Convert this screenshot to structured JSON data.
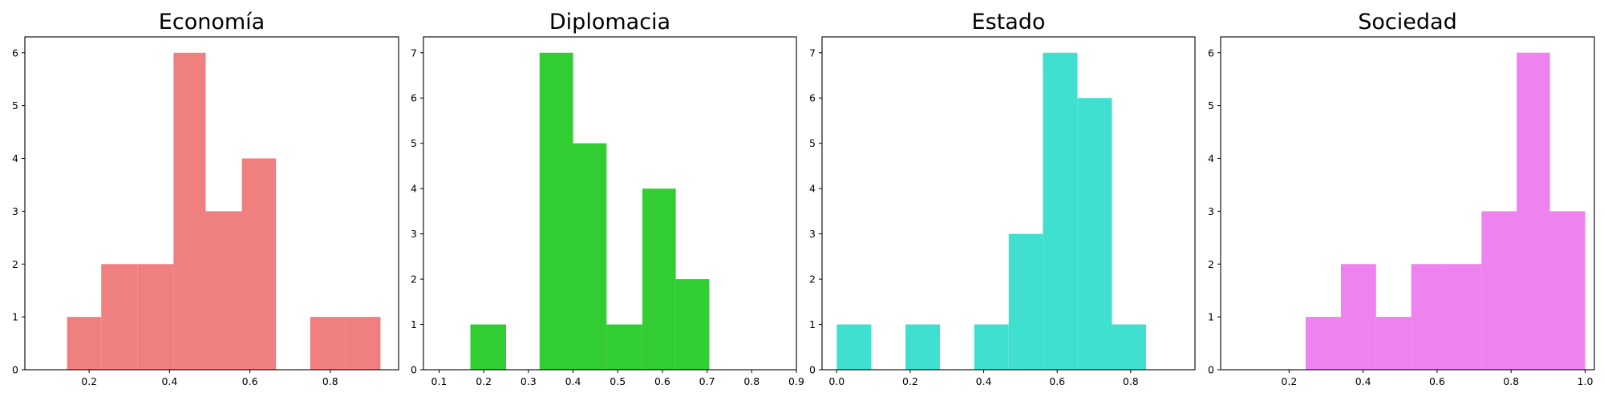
{
  "chart_data": [
    {
      "type": "bar",
      "title": "Economía",
      "color": "#F08080",
      "xlabel": "",
      "ylabel": "",
      "xlim": [
        0.04,
        0.97
      ],
      "ylim": [
        0,
        6.3
      ],
      "xticks": [
        0.2,
        0.4,
        0.6,
        0.8
      ],
      "xtick_labels": [
        "0.2",
        "0.4",
        "0.6",
        "0.8"
      ],
      "yticks": [
        0,
        1,
        2,
        3,
        4,
        5,
        6
      ],
      "ytick_labels": [
        "0",
        "1",
        "2",
        "3",
        "4",
        "5",
        "6"
      ],
      "bins": [
        {
          "x0": 0.145,
          "x1": 0.23,
          "count": 1
        },
        {
          "x0": 0.23,
          "x1": 0.32,
          "count": 2
        },
        {
          "x0": 0.32,
          "x1": 0.41,
          "count": 2
        },
        {
          "x0": 0.41,
          "x1": 0.49,
          "count": 6
        },
        {
          "x0": 0.49,
          "x1": 0.58,
          "count": 3
        },
        {
          "x0": 0.58,
          "x1": 0.665,
          "count": 4
        },
        {
          "x0": 0.665,
          "x1": 0.75,
          "count": 0
        },
        {
          "x0": 0.75,
          "x1": 0.84,
          "count": 1
        },
        {
          "x0": 0.84,
          "x1": 0.925,
          "count": 1
        }
      ]
    },
    {
      "type": "bar",
      "title": "Diplomacia",
      "color": "#32CD32",
      "xlabel": "",
      "ylabel": "",
      "xlim": [
        0.065,
        0.9
      ],
      "ylim": [
        0,
        7.35
      ],
      "xticks": [
        0.1,
        0.2,
        0.3,
        0.4,
        0.5,
        0.6,
        0.7,
        0.8,
        0.9
      ],
      "xtick_labels": [
        "0.1",
        "0.2",
        "0.3",
        "0.4",
        "0.5",
        "0.6",
        "0.7",
        "0.8",
        "0.9"
      ],
      "yticks": [
        0,
        1,
        2,
        3,
        4,
        5,
        6,
        7
      ],
      "ytick_labels": [
        "0",
        "1",
        "2",
        "3",
        "4",
        "5",
        "6",
        "7"
      ],
      "bins": [
        {
          "x0": 0.17,
          "x1": 0.25,
          "count": 1
        },
        {
          "x0": 0.25,
          "x1": 0.325,
          "count": 0
        },
        {
          "x0": 0.325,
          "x1": 0.4,
          "count": 7
        },
        {
          "x0": 0.4,
          "x1": 0.475,
          "count": 5
        },
        {
          "x0": 0.475,
          "x1": 0.555,
          "count": 1
        },
        {
          "x0": 0.555,
          "x1": 0.63,
          "count": 4
        },
        {
          "x0": 0.63,
          "x1": 0.705,
          "count": 2
        }
      ]
    },
    {
      "type": "bar",
      "title": "Estado",
      "color": "#40E0D0",
      "xlabel": "",
      "ylabel": "",
      "xlim": [
        -0.04,
        0.975
      ],
      "ylim": [
        0,
        7.35
      ],
      "xticks": [
        0.0,
        0.2,
        0.4,
        0.6,
        0.8
      ],
      "xtick_labels": [
        "0.0",
        "0.2",
        "0.4",
        "0.6",
        "0.8"
      ],
      "yticks": [
        0,
        1,
        2,
        3,
        4,
        5,
        6,
        7
      ],
      "ytick_labels": [
        "0",
        "1",
        "2",
        "3",
        "4",
        "5",
        "6",
        "7"
      ],
      "bins": [
        {
          "x0": 0.0,
          "x1": 0.094,
          "count": 1
        },
        {
          "x0": 0.094,
          "x1": 0.187,
          "count": 0
        },
        {
          "x0": 0.187,
          "x1": 0.281,
          "count": 1
        },
        {
          "x0": 0.281,
          "x1": 0.374,
          "count": 0
        },
        {
          "x0": 0.374,
          "x1": 0.468,
          "count": 1
        },
        {
          "x0": 0.468,
          "x1": 0.561,
          "count": 3
        },
        {
          "x0": 0.561,
          "x1": 0.655,
          "count": 7
        },
        {
          "x0": 0.655,
          "x1": 0.749,
          "count": 6
        },
        {
          "x0": 0.749,
          "x1": 0.842,
          "count": 1
        }
      ]
    },
    {
      "type": "bar",
      "title": "Sociedad",
      "color": "#EE82EE",
      "xlabel": "",
      "ylabel": "",
      "xlim": [
        0.015,
        1.025
      ],
      "ylim": [
        0,
        6.3
      ],
      "xticks": [
        0.2,
        0.4,
        0.6,
        0.8,
        1.0
      ],
      "xtick_labels": [
        "0.2",
        "0.4",
        "0.6",
        "0.8",
        "1.0"
      ],
      "yticks": [
        0,
        1,
        2,
        3,
        4,
        5,
        6
      ],
      "ytick_labels": [
        "0",
        "1",
        "2",
        "3",
        "4",
        "5",
        "6"
      ],
      "bins": [
        {
          "x0": 0.245,
          "x1": 0.34,
          "count": 1
        },
        {
          "x0": 0.34,
          "x1": 0.435,
          "count": 2
        },
        {
          "x0": 0.435,
          "x1": 0.53,
          "count": 1
        },
        {
          "x0": 0.53,
          "x1": 0.625,
          "count": 2
        },
        {
          "x0": 0.625,
          "x1": 0.72,
          "count": 2
        },
        {
          "x0": 0.72,
          "x1": 0.815,
          "count": 3
        },
        {
          "x0": 0.815,
          "x1": 0.905,
          "count": 6
        },
        {
          "x0": 0.905,
          "x1": 1.0,
          "count": 3
        }
      ]
    }
  ]
}
